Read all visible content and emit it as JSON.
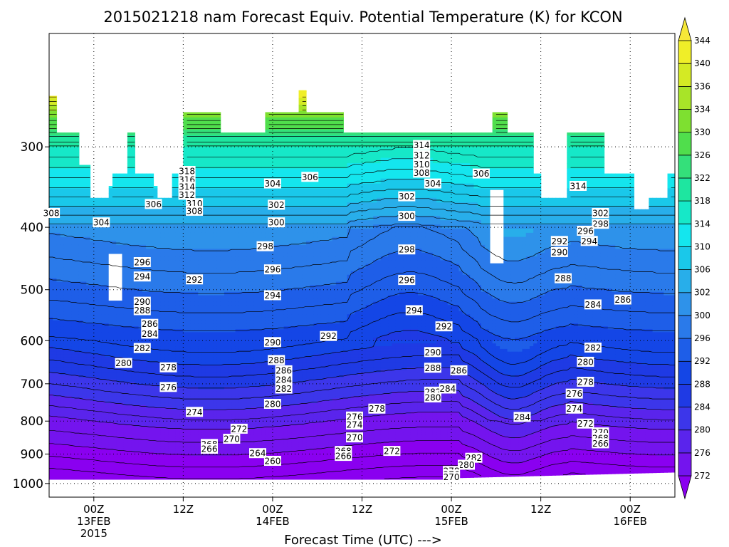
{
  "chart_data": {
    "type": "heatmap",
    "title": "2015021218 nam Forecast Equiv. Potential Temperature (K) for KCON",
    "xlabel": "Forecast Time (UTC) --->",
    "ylabel": "",
    "x_ticks": [
      {
        "hours": 6,
        "lines": [
          "00Z",
          "13FEB",
          "2015"
        ]
      },
      {
        "hours": 18,
        "lines": [
          "12Z"
        ]
      },
      {
        "hours": 30,
        "lines": [
          "00Z",
          "14FEB"
        ]
      },
      {
        "hours": 42,
        "lines": [
          "12Z"
        ]
      },
      {
        "hours": 54,
        "lines": [
          "00Z",
          "15FEB"
        ]
      },
      {
        "hours": 66,
        "lines": [
          "12Z"
        ]
      },
      {
        "hours": 78,
        "lines": [
          "00Z",
          "16FEB"
        ]
      }
    ],
    "xlim_hours": [
      0,
      84
    ],
    "y_ticks": [
      300,
      400,
      500,
      600,
      700,
      800,
      900,
      1000
    ],
    "ylim_hpa": [
      1050,
      200
    ],
    "y_scale": "log",
    "colorbar_levels": [
      272,
      276,
      280,
      284,
      288,
      292,
      296,
      300,
      302,
      306,
      310,
      314,
      318,
      322,
      326,
      330,
      334,
      336,
      340,
      344
    ],
    "colorbar_colors": [
      "#8a00f0",
      "#7414ee",
      "#5a24ec",
      "#3c36ea",
      "#1f3ae4",
      "#1446e6",
      "#1e5ee8",
      "#2a7aea",
      "#2e92ea",
      "#28aeea",
      "#1ac8ea",
      "#14e6ee",
      "#16e8c8",
      "#1ee6a0",
      "#34e07a",
      "#50de4c",
      "#7ee030",
      "#a8e428",
      "#d4ea24",
      "#f0ee28",
      "#f6e838"
    ],
    "colorbar_placement": "right",
    "grid": true,
    "contour_labels": [
      {
        "h": 0.3,
        "p": 380,
        "v": "308"
      },
      {
        "h": 7,
        "p": 393,
        "v": "304"
      },
      {
        "h": 14,
        "p": 368,
        "v": "306"
      },
      {
        "h": 18.5,
        "p": 327,
        "v": "318"
      },
      {
        "h": 18.5,
        "p": 337,
        "v": "316"
      },
      {
        "h": 18.5,
        "p": 346,
        "v": "314"
      },
      {
        "h": 18.5,
        "p": 356,
        "v": "312"
      },
      {
        "h": 19.5,
        "p": 367,
        "v": "310"
      },
      {
        "h": 19.5,
        "p": 377,
        "v": "308"
      },
      {
        "h": 30,
        "p": 342,
        "v": "304"
      },
      {
        "h": 35,
        "p": 334,
        "v": "306"
      },
      {
        "h": 30.5,
        "p": 369,
        "v": "302"
      },
      {
        "h": 30.5,
        "p": 393,
        "v": "300"
      },
      {
        "h": 29,
        "p": 428,
        "v": "298"
      },
      {
        "h": 30,
        "p": 465,
        "v": "296"
      },
      {
        "h": 30,
        "p": 510,
        "v": "294"
      },
      {
        "h": 12.5,
        "p": 453,
        "v": "296"
      },
      {
        "h": 12.5,
        "p": 477,
        "v": "294"
      },
      {
        "h": 19.5,
        "p": 482,
        "v": "292"
      },
      {
        "h": 12.5,
        "p": 522,
        "v": "290"
      },
      {
        "h": 12.5,
        "p": 538,
        "v": "288"
      },
      {
        "h": 13.5,
        "p": 565,
        "v": "286"
      },
      {
        "h": 13.5,
        "p": 585,
        "v": "284"
      },
      {
        "h": 12.5,
        "p": 616,
        "v": "282"
      },
      {
        "h": 10,
        "p": 650,
        "v": "280"
      },
      {
        "h": 16,
        "p": 660,
        "v": "278"
      },
      {
        "h": 16,
        "p": 708,
        "v": "276"
      },
      {
        "h": 19.5,
        "p": 774,
        "v": "274"
      },
      {
        "h": 25.5,
        "p": 822,
        "v": "272"
      },
      {
        "h": 24.5,
        "p": 852,
        "v": "270"
      },
      {
        "h": 21.5,
        "p": 868,
        "v": "268"
      },
      {
        "h": 21.5,
        "p": 883,
        "v": "266"
      },
      {
        "h": 28,
        "p": 897,
        "v": "264"
      },
      {
        "h": 30,
        "p": 922,
        "v": "260"
      },
      {
        "h": 30,
        "p": 603,
        "v": "290"
      },
      {
        "h": 30.5,
        "p": 643,
        "v": "288"
      },
      {
        "h": 31.5,
        "p": 667,
        "v": "286"
      },
      {
        "h": 31.5,
        "p": 690,
        "v": "284"
      },
      {
        "h": 31.5,
        "p": 712,
        "v": "282"
      },
      {
        "h": 30,
        "p": 752,
        "v": "280"
      },
      {
        "h": 37.5,
        "p": 590,
        "v": "292"
      },
      {
        "h": 41,
        "p": 787,
        "v": "276"
      },
      {
        "h": 41,
        "p": 810,
        "v": "274"
      },
      {
        "h": 41,
        "p": 848,
        "v": "270"
      },
      {
        "h": 39.5,
        "p": 890,
        "v": "268"
      },
      {
        "h": 39.5,
        "p": 906,
        "v": "266"
      },
      {
        "h": 44,
        "p": 765,
        "v": "278"
      },
      {
        "h": 46,
        "p": 890,
        "v": "272"
      },
      {
        "h": 50,
        "p": 298,
        "v": "314"
      },
      {
        "h": 50,
        "p": 309,
        "v": "312"
      },
      {
        "h": 50,
        "p": 319,
        "v": "310"
      },
      {
        "h": 50,
        "p": 329,
        "v": "308"
      },
      {
        "h": 51.5,
        "p": 342,
        "v": "304"
      },
      {
        "h": 58,
        "p": 330,
        "v": "306"
      },
      {
        "h": 48,
        "p": 358,
        "v": "302"
      },
      {
        "h": 48,
        "p": 384,
        "v": "300"
      },
      {
        "h": 48,
        "p": 433,
        "v": "298"
      },
      {
        "h": 48,
        "p": 483,
        "v": "296"
      },
      {
        "h": 49,
        "p": 538,
        "v": "294"
      },
      {
        "h": 53,
        "p": 570,
        "v": "292"
      },
      {
        "h": 51.5,
        "p": 625,
        "v": "290"
      },
      {
        "h": 51.5,
        "p": 661,
        "v": "288"
      },
      {
        "h": 55,
        "p": 667,
        "v": "286"
      },
      {
        "h": 51.5,
        "p": 720,
        "v": "282"
      },
      {
        "h": 51.5,
        "p": 735,
        "v": "280"
      },
      {
        "h": 53.5,
        "p": 712,
        "v": "284"
      },
      {
        "h": 63.5,
        "p": 788,
        "v": "284"
      },
      {
        "h": 57,
        "p": 912,
        "v": "282"
      },
      {
        "h": 56,
        "p": 935,
        "v": "280"
      },
      {
        "h": 54,
        "p": 956,
        "v": "278"
      },
      {
        "h": 54,
        "p": 968,
        "v": "276"
      },
      {
        "h": 54,
        "p": 977,
        "v": "270"
      },
      {
        "h": 71,
        "p": 345,
        "v": "314"
      },
      {
        "h": 74,
        "p": 380,
        "v": "302"
      },
      {
        "h": 74,
        "p": 395,
        "v": "298"
      },
      {
        "h": 72,
        "p": 405,
        "v": "296"
      },
      {
        "h": 72.5,
        "p": 420,
        "v": "294"
      },
      {
        "h": 68.5,
        "p": 420,
        "v": "292"
      },
      {
        "h": 68.5,
        "p": 437,
        "v": "290"
      },
      {
        "h": 69,
        "p": 480,
        "v": "288"
      },
      {
        "h": 73,
        "p": 527,
        "v": "284"
      },
      {
        "h": 77,
        "p": 518,
        "v": "286"
      },
      {
        "h": 73,
        "p": 615,
        "v": "282"
      },
      {
        "h": 72,
        "p": 647,
        "v": "280"
      },
      {
        "h": 72,
        "p": 695,
        "v": "278"
      },
      {
        "h": 70.5,
        "p": 725,
        "v": "276"
      },
      {
        "h": 70.5,
        "p": 765,
        "v": "274"
      },
      {
        "h": 72,
        "p": 807,
        "v": "272"
      },
      {
        "h": 74,
        "p": 833,
        "v": "270"
      },
      {
        "h": 74,
        "p": 850,
        "v": "268"
      },
      {
        "h": 74,
        "p": 866,
        "v": "266"
      }
    ]
  }
}
